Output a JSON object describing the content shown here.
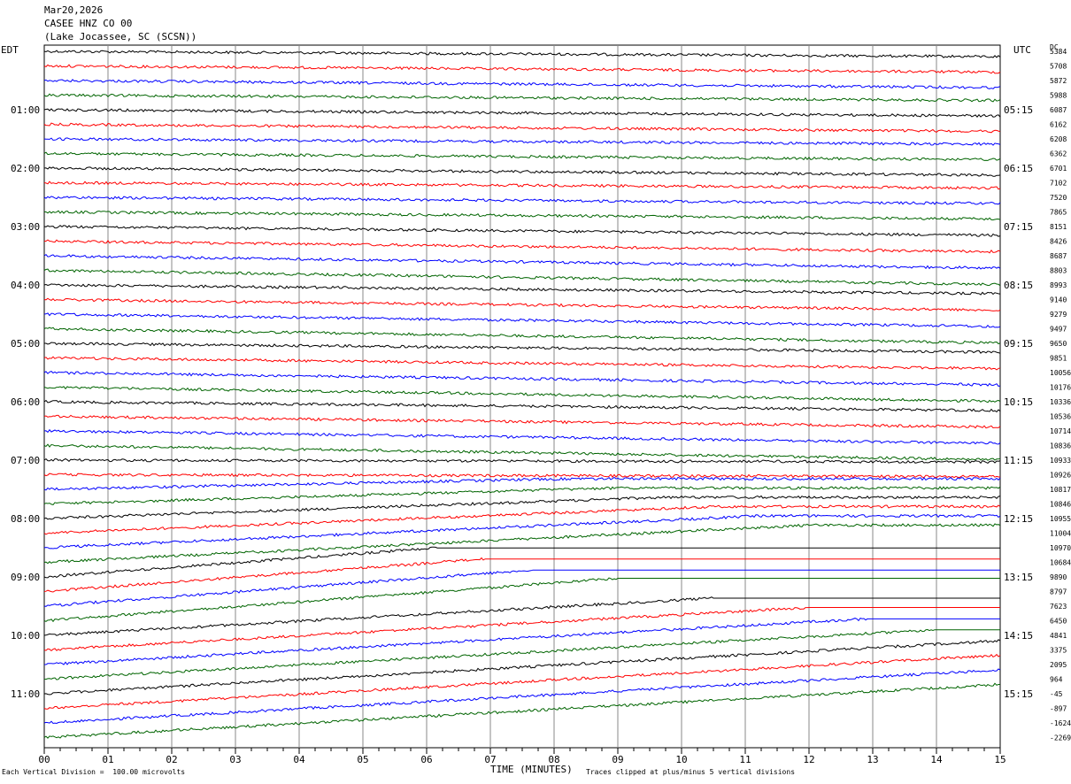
{
  "header": {
    "date": "Mar20,2026",
    "station": "CASEE HNZ CO 00",
    "location": "(Lake Jocassee, SC (SCSN))"
  },
  "axis_labels": {
    "left_zone": "EDT",
    "right_zone": "UTC",
    "dc": "DC",
    "x_title": "TIME (MINUTES)",
    "scale_note": "Each Vertical Division =  100.00 microvolts",
    "clip_note": "Traces clipped at plus/minus 5 vertical divisions"
  },
  "chart_data": {
    "type": "line",
    "title": "",
    "xlabel": "TIME (MINUTES)",
    "xlim": [
      0,
      15
    ],
    "x_ticks": [
      "00",
      "01",
      "02",
      "03",
      "04",
      "05",
      "06",
      "07",
      "08",
      "09",
      "10",
      "11",
      "12",
      "13",
      "14",
      "15"
    ],
    "left_hour_labels": [
      "01:00",
      "02:00",
      "03:00",
      "04:00",
      "05:00",
      "06:00",
      "07:00",
      "08:00",
      "09:00",
      "10:00",
      "11:00"
    ],
    "right_hour_labels": [
      "05:15",
      "06:15",
      "07:15",
      "08:15",
      "09:15",
      "10:15",
      "11:15",
      "12:15",
      "13:15",
      "14:15",
      "15:15"
    ],
    "trace_colors": [
      "#000000",
      "#ff0000",
      "#0000ff",
      "#006400"
    ],
    "dc_offsets": [
      "5384",
      "5708",
      "5872",
      "5988",
      "6087",
      "6162",
      "6208",
      "6362",
      "6701",
      "7102",
      "7520",
      "7865",
      "8151",
      "8426",
      "8687",
      "8803",
      "8993",
      "9140",
      "9279",
      "9497",
      "9650",
      "9851",
      "10056",
      "10176",
      "10336",
      "10536",
      "10714",
      "10836",
      "10933",
      "10926",
      "10817",
      "10846",
      "10955",
      "11004",
      "10970",
      "10684",
      "9890",
      "8797",
      "7623",
      "6450",
      "4841",
      "3375",
      "2095",
      "964",
      "-45",
      "-897",
      "-1624",
      "-2269"
    ]
  }
}
